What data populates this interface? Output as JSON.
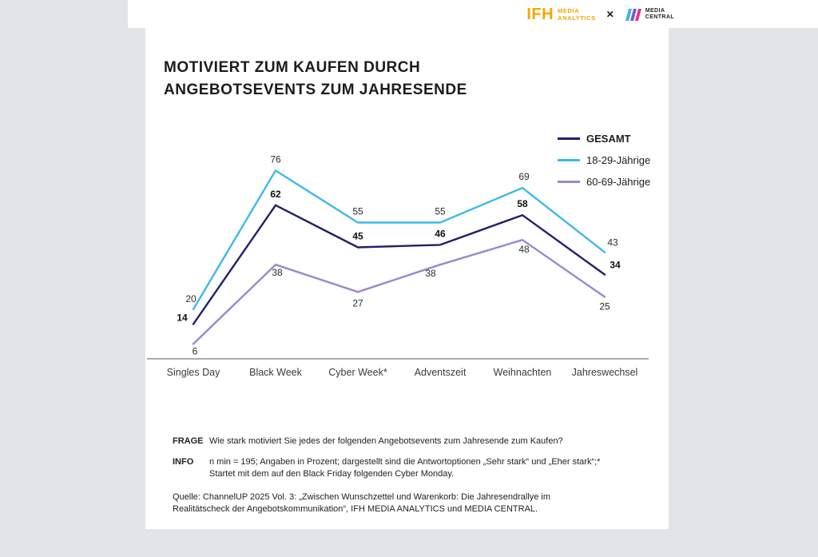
{
  "header": {
    "ifh_logo": {
      "abbr": "IFH",
      "line1": "MEDIA",
      "line2": "ANALYTICS"
    },
    "separator": "✕",
    "media_central_logo": {
      "line1": "MEDIA",
      "line2": "CENTRAL"
    }
  },
  "card": {
    "title_line1": "MOTIVIERT ZUM KAUFEN DURCH",
    "title_line2": "ANGEBOTSEVENTS ZUM JAHRESENDE",
    "frage_label": "FRAGE",
    "frage_text": "Wie stark motiviert Sie jedes der folgenden Angebotsevents zum Jahresende zum Kaufen?",
    "info_label": "INFO",
    "info_text": "n min = 195; Angaben in Prozent; dargestellt sind die Antwortoptionen „Sehr stark“ und „Eher stark“;* Startet mit dem auf den Black Friday folgenden Cyber Monday.",
    "quelle_text": "Quelle: ChannelUP 2025 Vol. 3: „Zwischen Wunschzettel und Warenkorb: Die Jahresendrallye im Realitätscheck der Angebotskommunikation“, IFH MEDIA ANALYTICS und MEDIA CENTRAL."
  },
  "chart_data": {
    "type": "line",
    "title": "Motiviert zum Kaufen durch Angebotsevents zum Jahresende",
    "categories": [
      "Singles Day",
      "Black Week",
      "Cyber Week*",
      "Adventszeit",
      "Weihnachten",
      "Jahreswechsel"
    ],
    "series": [
      {
        "name": "GESAMT",
        "color": "#20206b",
        "values": [
          14,
          62,
          45,
          46,
          58,
          34
        ],
        "bold_labels": true,
        "label_offsets": [
          [
            -14,
            -4
          ],
          [
            0,
            -10
          ],
          [
            0,
            -10
          ],
          [
            0,
            -10
          ],
          [
            0,
            -10
          ],
          [
            13,
            -8
          ]
        ]
      },
      {
        "name": "18-29-Jährige",
        "color": "#3fb9ea",
        "values": [
          20,
          76,
          55,
          55,
          69,
          43
        ],
        "bold_labels": false,
        "label_offsets": [
          [
            -3,
            -9
          ],
          [
            0,
            -10
          ],
          [
            0,
            -10
          ],
          [
            0,
            -10
          ],
          [
            2,
            -10
          ],
          [
            10,
            -8
          ]
        ]
      },
      {
        "name": "60-69-Jährige",
        "color": "#9c86d2",
        "values": [
          6,
          38,
          27,
          38,
          48,
          25
        ],
        "bold_labels": false,
        "label_offsets": [
          [
            2,
            13
          ],
          [
            2,
            14
          ],
          [
            0,
            18
          ],
          [
            -12,
            15
          ],
          [
            2,
            16
          ],
          [
            0,
            16
          ]
        ]
      }
    ],
    "unit": "percent",
    "ylim": [
      0,
      85
    ],
    "grid": false,
    "legend_position": "top-right"
  }
}
